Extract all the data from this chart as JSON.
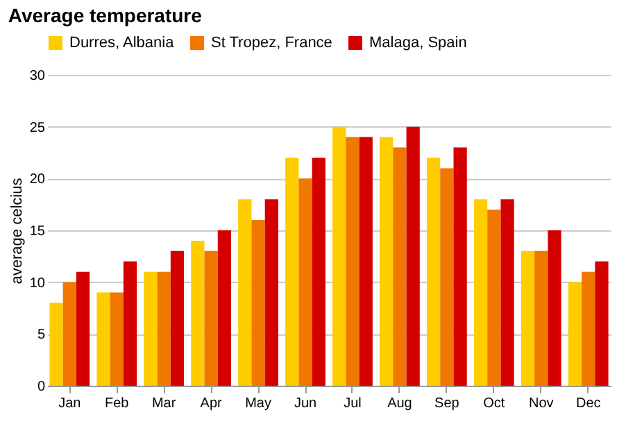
{
  "chart_data": {
    "type": "bar",
    "title": "Average temperature",
    "ylabel": "average celcius",
    "categories": [
      "Jan",
      "Feb",
      "Mar",
      "Apr",
      "May",
      "Jun",
      "Jul",
      "Aug",
      "Sep",
      "Oct",
      "Nov",
      "Dec"
    ],
    "series": [
      {
        "name": "Durres, Albania",
        "color": "#ffcc00",
        "values": [
          8,
          9,
          11,
          14,
          18,
          22,
          25,
          24,
          22,
          18,
          13,
          10
        ]
      },
      {
        "name": "St Tropez, France",
        "color": "#f07800",
        "values": [
          10,
          9,
          11,
          13,
          16,
          20,
          24,
          23,
          21,
          17,
          13,
          11
        ]
      },
      {
        "name": "Malaga, Spain",
        "color": "#d40000",
        "values": [
          11,
          12,
          13,
          15,
          18,
          22,
          24,
          25,
          23,
          18,
          15,
          12
        ]
      }
    ],
    "ylim": [
      0,
      30
    ],
    "yticks": [
      0,
      5,
      10,
      15,
      20,
      25,
      30
    ],
    "grid": "y",
    "legend": "top"
  }
}
